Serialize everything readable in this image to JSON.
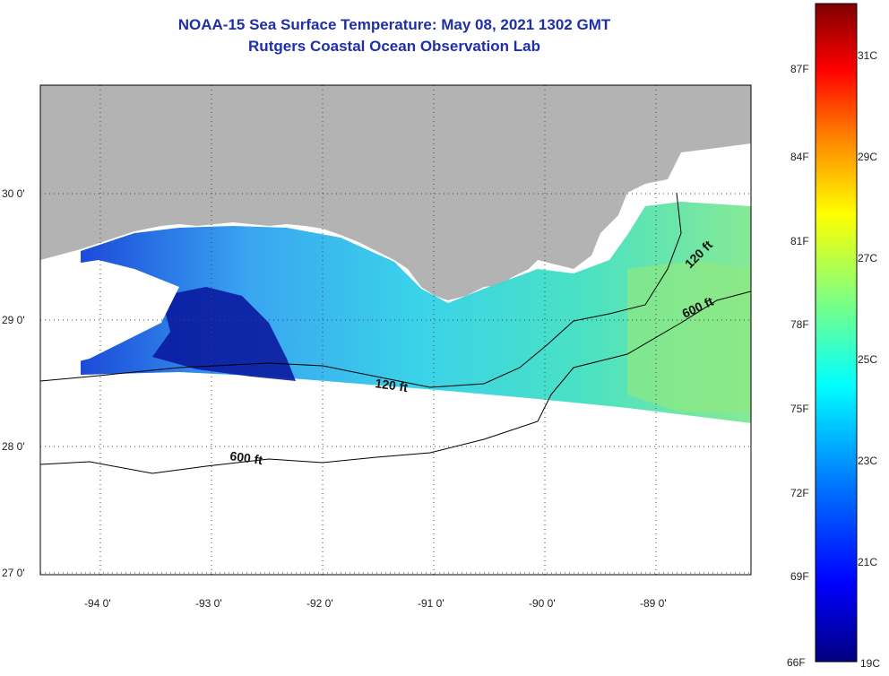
{
  "header": {
    "title": "NOAA-15 Sea Surface Temperature:  May 08, 2021 1302 GMT",
    "subtitle": "Rutgers Coastal Ocean Observation Lab"
  },
  "map": {
    "lon_range": [
      -94.55,
      -88.3
    ],
    "lat_range": [
      26.95,
      30.85
    ],
    "lon_ticks": [
      "-94 0'",
      "-93 0'",
      "-92 0'",
      "-91 0'",
      "-90 0'",
      "-89 0'"
    ],
    "lat_ticks": [
      "30 0'",
      "29 0'",
      "28 0'",
      "27 0'"
    ],
    "land_color": "#b3b3b3",
    "no_data_color": "#ffffff",
    "contours": [
      {
        "label": "120 ft"
      },
      {
        "label": "600 ft"
      }
    ]
  },
  "colorbar": {
    "fahrenheit_labels": [
      "87F",
      "84F",
      "81F",
      "78F",
      "75F",
      "72F",
      "69F",
      "66F"
    ],
    "celsius_labels": [
      "31C",
      "29C",
      "27C",
      "25C",
      "23C",
      "21C",
      "19C"
    ],
    "range_celsius": [
      19,
      32
    ],
    "colors": [
      "#00007f",
      "#0000ff",
      "#007fff",
      "#00ffff",
      "#7fff7f",
      "#ffff00",
      "#ff7f00",
      "#ff0000",
      "#7f0000"
    ]
  }
}
